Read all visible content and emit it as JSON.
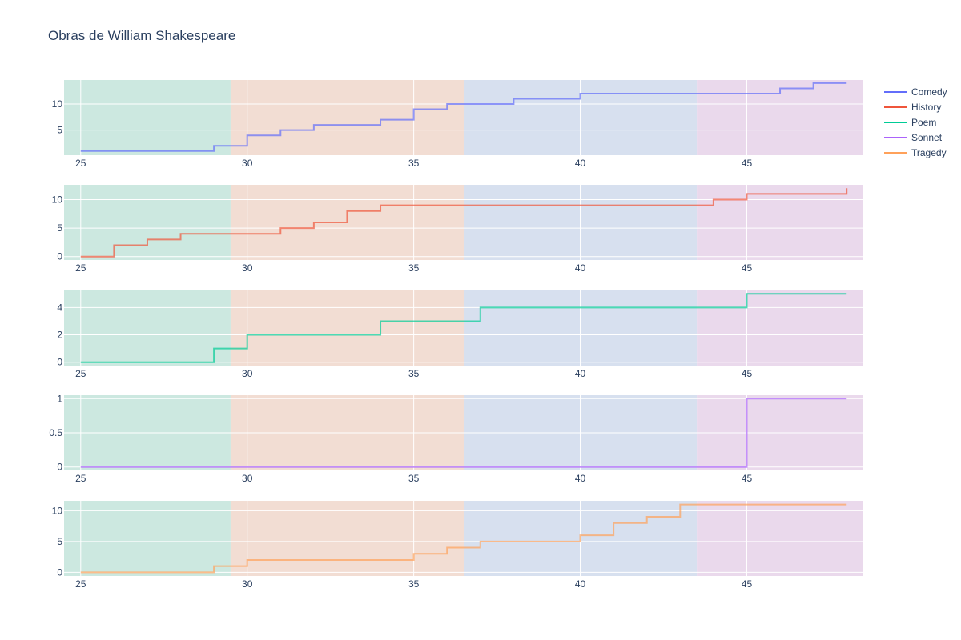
{
  "title": "Obras de William Shakespeare",
  "legend": [
    {
      "name": "Comedy",
      "color": "#636efa"
    },
    {
      "name": "History",
      "color": "#ef553b"
    },
    {
      "name": "Poem",
      "color": "#00cc96"
    },
    {
      "name": "Sonnet",
      "color": "#ab63fa"
    },
    {
      "name": "Tragedy",
      "color": "#ffa15a"
    }
  ],
  "chart_data": [
    {
      "type": "line",
      "line_shape": "step",
      "series_name": "Comedy",
      "color": "#636efa",
      "x": [
        25,
        26,
        27,
        28,
        29,
        30,
        31,
        32,
        33,
        34,
        35,
        36,
        37,
        38,
        39,
        40,
        41,
        42,
        43,
        44,
        45,
        46,
        47,
        48
      ],
      "y": [
        1,
        1,
        1,
        1,
        2,
        4,
        5,
        6,
        6,
        7,
        9,
        10,
        10,
        11,
        11,
        12,
        12,
        12,
        12,
        12,
        12,
        13,
        14,
        14
      ],
      "xlim": [
        24.5,
        48.5
      ],
      "ylim": [
        0.2,
        14.6
      ],
      "xticks": [
        "25",
        "30",
        "35",
        "40",
        "45"
      ],
      "yticks": [
        "5",
        "10"
      ],
      "grid": true
    },
    {
      "type": "line",
      "line_shape": "step",
      "series_name": "History",
      "color": "#ef553b",
      "x": [
        25,
        26,
        27,
        28,
        29,
        30,
        31,
        32,
        33,
        34,
        35,
        36,
        37,
        38,
        39,
        40,
        41,
        42,
        43,
        44,
        45,
        46,
        47,
        48
      ],
      "y": [
        0,
        2,
        3,
        4,
        4,
        4,
        5,
        6,
        8,
        9,
        9,
        9,
        9,
        9,
        9,
        9,
        9,
        9,
        9,
        10,
        11,
        11,
        11,
        12
      ],
      "xlim": [
        24.5,
        48.5
      ],
      "ylim": [
        -0.6,
        12.6
      ],
      "xticks": [
        "25",
        "30",
        "35",
        "40",
        "45"
      ],
      "yticks": [
        "0",
        "5",
        "10"
      ],
      "grid": true
    },
    {
      "type": "line",
      "line_shape": "step",
      "series_name": "Poem",
      "color": "#00cc96",
      "x": [
        25,
        26,
        27,
        28,
        29,
        30,
        31,
        32,
        33,
        34,
        35,
        36,
        37,
        38,
        39,
        40,
        41,
        42,
        43,
        44,
        45,
        46,
        47,
        48
      ],
      "y": [
        0,
        0,
        0,
        0,
        1,
        2,
        2,
        2,
        2,
        3,
        3,
        3,
        4,
        4,
        4,
        4,
        4,
        4,
        4,
        4,
        5,
        5,
        5,
        5
      ],
      "xlim": [
        24.5,
        48.5
      ],
      "ylim": [
        -0.25,
        5.25
      ],
      "xticks": [
        "25",
        "30",
        "35",
        "40",
        "45"
      ],
      "yticks": [
        "0",
        "2",
        "4"
      ],
      "grid": true
    },
    {
      "type": "line",
      "line_shape": "step",
      "series_name": "Sonnet",
      "color": "#ab63fa",
      "x": [
        25,
        26,
        27,
        28,
        29,
        30,
        31,
        32,
        33,
        34,
        35,
        36,
        37,
        38,
        39,
        40,
        41,
        42,
        43,
        44,
        45,
        46,
        47,
        48
      ],
      "y": [
        0,
        0,
        0,
        0,
        0,
        0,
        0,
        0,
        0,
        0,
        0,
        0,
        0,
        0,
        0,
        0,
        0,
        0,
        0,
        0,
        1,
        1,
        1,
        1
      ],
      "xlim": [
        24.5,
        48.5
      ],
      "ylim": [
        -0.05,
        1.05
      ],
      "xticks": [
        "25",
        "30",
        "35",
        "40",
        "45"
      ],
      "yticks": [
        "0",
        "0.5",
        "1"
      ],
      "grid": true
    },
    {
      "type": "line",
      "line_shape": "step",
      "series_name": "Tragedy",
      "color": "#ffa15a",
      "x": [
        25,
        26,
        27,
        28,
        29,
        30,
        31,
        32,
        33,
        34,
        35,
        36,
        37,
        38,
        39,
        40,
        41,
        42,
        43,
        44,
        45,
        46,
        47,
        48
      ],
      "y": [
        0,
        0,
        0,
        0,
        1,
        2,
        2,
        2,
        2,
        2,
        3,
        4,
        5,
        5,
        5,
        6,
        8,
        9,
        11,
        11,
        11,
        11,
        11,
        11
      ],
      "xlim": [
        24.5,
        48.5
      ],
      "ylim": [
        -0.6,
        11.6
      ],
      "xticks": [
        "25",
        "30",
        "35",
        "40",
        "45"
      ],
      "yticks": [
        "0",
        "5",
        "10"
      ],
      "grid": true
    }
  ],
  "background_bands": [
    {
      "from": 24.5,
      "to": 29.5,
      "color": "#cce8e0"
    },
    {
      "from": 29.5,
      "to": 36.5,
      "color": "#f2ddd3"
    },
    {
      "from": 36.5,
      "to": 43.5,
      "color": "#d7e0ef"
    },
    {
      "from": 43.5,
      "to": 48.5,
      "color": "#ead9ec"
    }
  ]
}
